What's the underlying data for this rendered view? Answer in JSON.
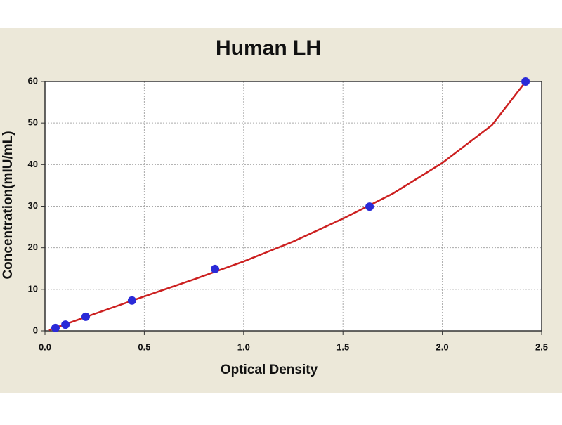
{
  "chart_data": {
    "type": "scatter",
    "title": "Human LH",
    "x_label": "Optical Density",
    "y_label": "Concentration(mIU/mL)",
    "xlim": [
      0,
      2.5
    ],
    "ylim": [
      0,
      60
    ],
    "xticks": [
      {
        "value": 0,
        "label": "0.0"
      },
      0.5,
      {
        "value": 1,
        "label": "1.0"
      },
      1.5,
      {
        "value": 2,
        "label": "2.0"
      },
      2.5
    ],
    "yticks": [
      0,
      10,
      20,
      30,
      40,
      50,
      60
    ],
    "grid": true,
    "series": [
      {
        "style": "line",
        "color": "#cc2020",
        "x": [
          0.02,
          0.25,
          0.5,
          0.75,
          1.0,
          1.25,
          1.5,
          1.75,
          2.0,
          2.25,
          2.42
        ],
        "values": [
          0.2,
          4.1,
          8.3,
          12.4,
          16.7,
          21.5,
          27.0,
          33.0,
          40.4,
          49.5,
          60
        ]
      },
      {
        "style": "markers",
        "color": "#2a2ad8",
        "x": [
          0.053,
          0.103,
          0.205,
          0.438,
          0.856,
          1.634,
          2.419
        ],
        "values": [
          0.7,
          1.5,
          3.4,
          7.3,
          14.9,
          29.9,
          60
        ]
      }
    ]
  }
}
